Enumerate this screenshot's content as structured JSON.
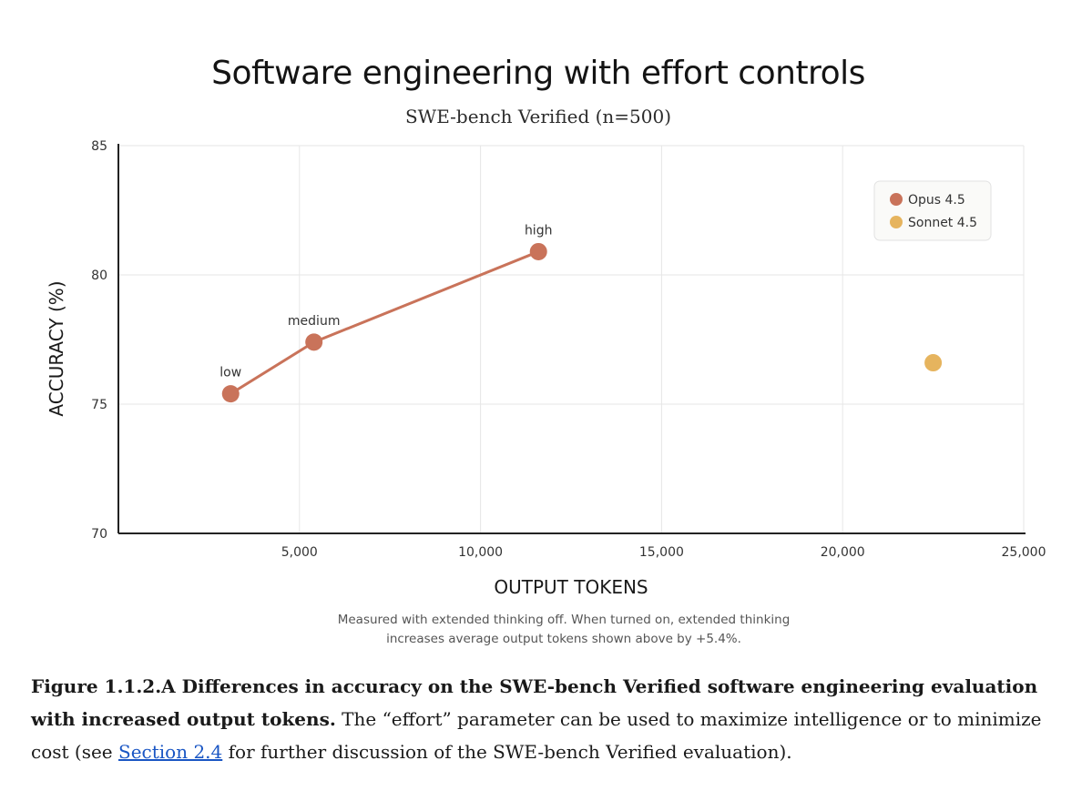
{
  "chart_data": {
    "type": "line",
    "title": "Software engineering with effort controls",
    "subtitle": "SWE-bench Verified (n=500)",
    "xlabel": "OUTPUT TOKENS",
    "ylabel": "ACCURACY (%)",
    "xlim": [
      0,
      25000
    ],
    "ylim": [
      70,
      85
    ],
    "xticks": [
      5000,
      10000,
      15000,
      20000,
      25000
    ],
    "xtick_labels": [
      "5,000",
      "10,000",
      "15,000",
      "20,000",
      "25,000"
    ],
    "yticks": [
      70,
      75,
      80,
      85
    ],
    "ytick_labels": [
      "70",
      "75",
      "80",
      "85"
    ],
    "grid": true,
    "legend_position": "top-right",
    "series": [
      {
        "name": "Opus 4.5",
        "color": "#c9735a",
        "points": [
          {
            "x": 3100,
            "y": 75.4,
            "label": "low"
          },
          {
            "x": 5400,
            "y": 77.4,
            "label": "medium"
          },
          {
            "x": 11600,
            "y": 80.9,
            "label": "high"
          }
        ]
      },
      {
        "name": "Sonnet 4.5",
        "color": "#e6b45e",
        "points": [
          {
            "x": 22500,
            "y": 76.6,
            "label": ""
          }
        ]
      }
    ],
    "footnote": [
      "Measured with extended thinking off. When turned on, extended thinking",
      "increases average output tokens shown above by +5.4%."
    ]
  },
  "caption": {
    "bold": "Figure 1.1.2.A Differences in accuracy on the SWE-bench Verified software engineering evaluation with increased output tokens.",
    "text_before_link": " The “effort” parameter can be used to maximize intelligence or to minimize cost (see ",
    "link": "Section 2.4",
    "text_after_link": " for further discussion of the SWE-bench Verified evaluation)."
  }
}
